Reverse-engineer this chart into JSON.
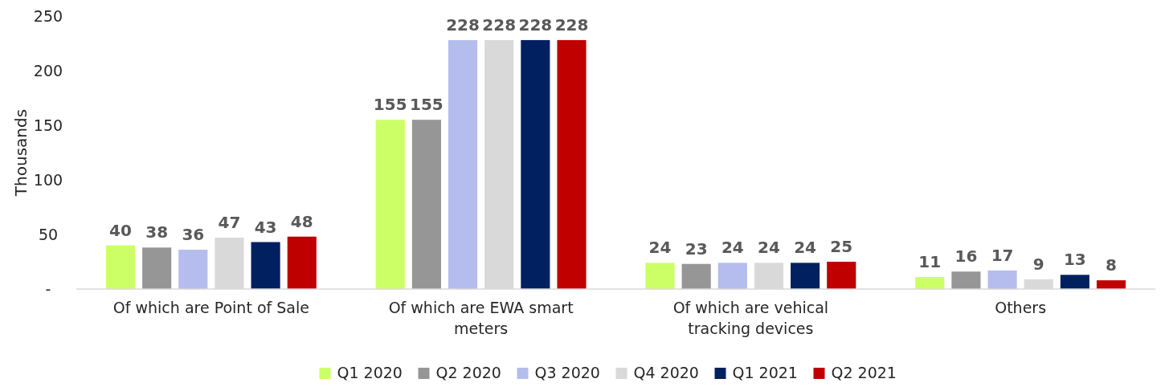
{
  "chart_data": {
    "type": "bar",
    "ylabel": "Thousands",
    "categories": [
      "Of which are Point of Sale",
      "Of which are EWA smart meters",
      "Of which are vehical tracking devices",
      "Others"
    ],
    "series": [
      {
        "name": "Q1 2020",
        "color": "#ccff66",
        "values": [
          40,
          155,
          24,
          11
        ]
      },
      {
        "name": "Q2 2020",
        "color": "#969696",
        "values": [
          38,
          155,
          23,
          16
        ]
      },
      {
        "name": "Q3 2020",
        "color": "#b4bdee",
        "values": [
          36,
          228,
          24,
          17
        ]
      },
      {
        "name": "Q4 2020",
        "color": "#d9d9d9",
        "values": [
          47,
          228,
          24,
          9
        ]
      },
      {
        "name": "Q1 2021",
        "color": "#002060",
        "values": [
          43,
          228,
          24,
          13
        ]
      },
      {
        "name": "Q2 2021",
        "color": "#c00000",
        "values": [
          48,
          228,
          25,
          8
        ]
      }
    ],
    "ylim": [
      0,
      250
    ],
    "yticks": [
      {
        "value": 0,
        "label": "-"
      },
      50,
      100,
      150,
      200,
      250
    ],
    "data_labels": true,
    "grid": false,
    "legend": "bottom"
  }
}
